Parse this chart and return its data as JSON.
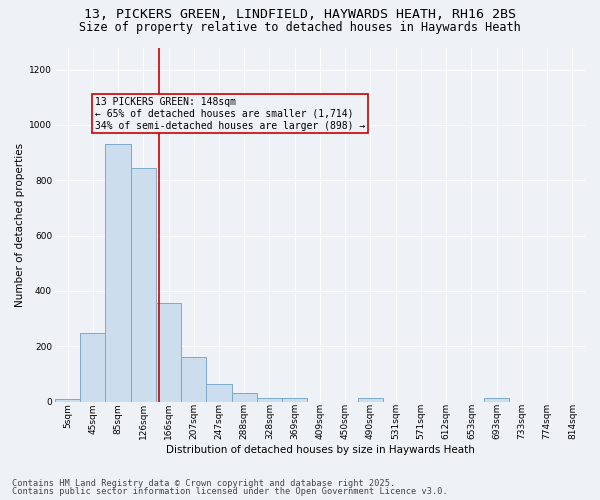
{
  "title_line1": "13, PICKERS GREEN, LINDFIELD, HAYWARDS HEATH, RH16 2BS",
  "title_line2": "Size of property relative to detached houses in Haywards Heath",
  "xlabel": "Distribution of detached houses by size in Haywards Heath",
  "ylabel": "Number of detached properties",
  "bar_color": "#ccdded",
  "bar_edge_color": "#7aaac8",
  "categories": [
    "5sqm",
    "45sqm",
    "85sqm",
    "126sqm",
    "166sqm",
    "207sqm",
    "247sqm",
    "288sqm",
    "328sqm",
    "369sqm",
    "409sqm",
    "450sqm",
    "490sqm",
    "531sqm",
    "571sqm",
    "612sqm",
    "653sqm",
    "693sqm",
    "733sqm",
    "774sqm",
    "814sqm"
  ],
  "values": [
    8,
    248,
    930,
    845,
    355,
    160,
    65,
    30,
    15,
    13,
    0,
    0,
    13,
    0,
    0,
    0,
    0,
    13,
    0,
    0,
    0
  ],
  "vline_x": 3.62,
  "vline_color": "#cc0000",
  "annotation_text": "13 PICKERS GREEN: 148sqm\n← 65% of detached houses are smaller (1,714)\n34% of semi-detached houses are larger (898) →",
  "ylim": [
    0,
    1280
  ],
  "yticks": [
    0,
    200,
    400,
    600,
    800,
    1000,
    1200
  ],
  "bg_color": "#eef2f7",
  "grid_color": "#ffffff",
  "footer_line1": "Contains HM Land Registry data © Crown copyright and database right 2025.",
  "footer_line2": "Contains public sector information licensed under the Open Government Licence v3.0.",
  "title_fontsize": 9.5,
  "subtitle_fontsize": 8.5,
  "annotation_fontsize": 7,
  "axis_label_fontsize": 7.5,
  "tick_fontsize": 6.5,
  "footer_fontsize": 6.2,
  "ylabel_fontsize": 7.5
}
